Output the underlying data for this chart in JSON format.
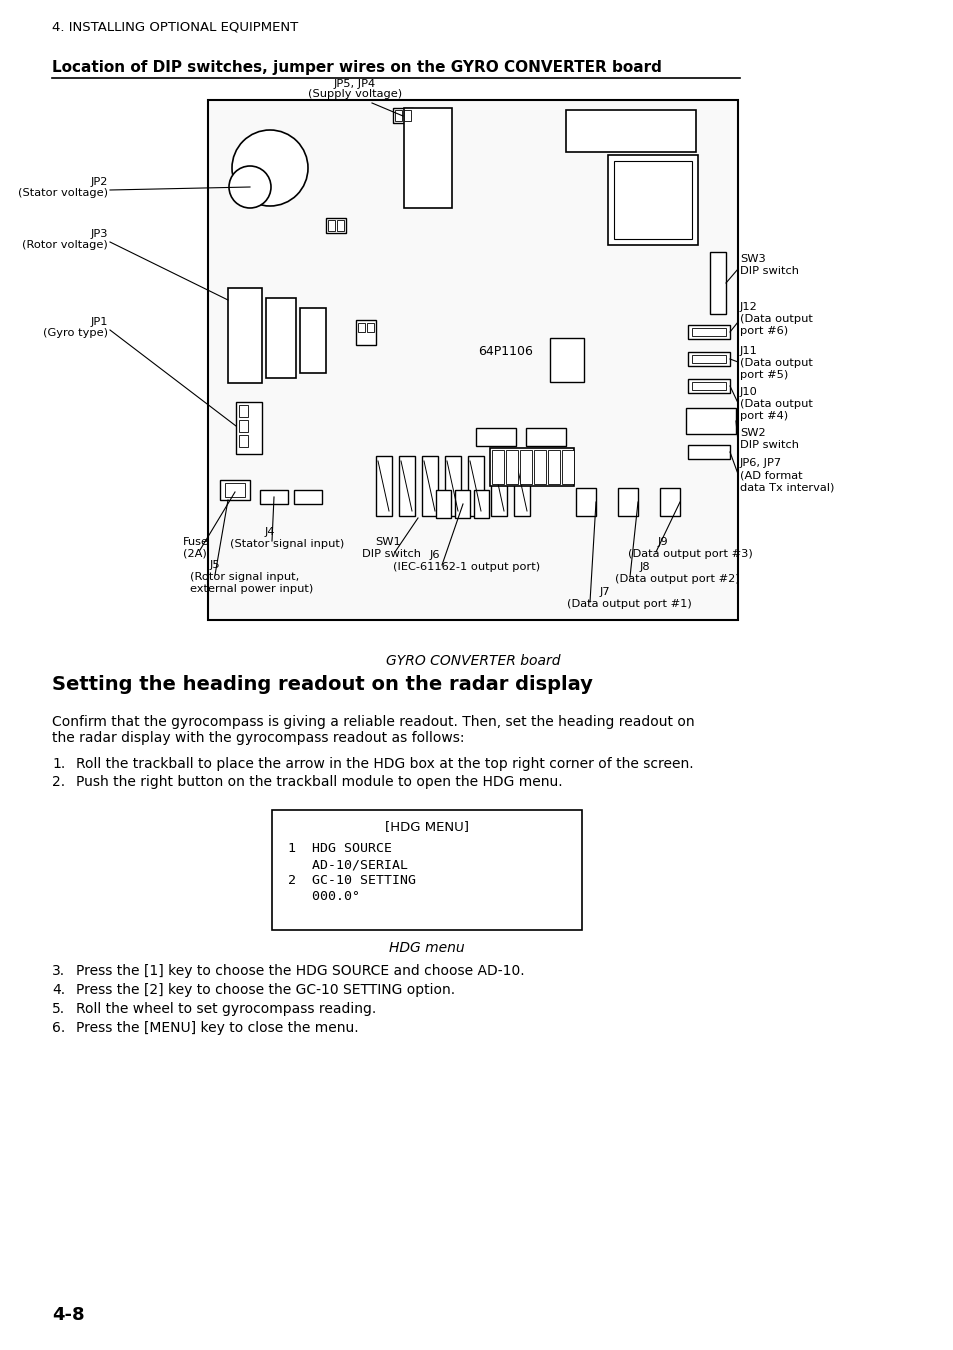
{
  "page_header": "4. INSTALLING OPTIONAL EQUIPMENT",
  "section_title": "Location of DIP switches, jumper wires on the GYRO CONVERTER board",
  "board_caption": "GYRO CONVERTER board",
  "section2_title": "Setting the heading readout on the radar display",
  "intro_text_1": "Confirm that the gyrocompass is giving a reliable readout. Then, set the heading readout on",
  "intro_text_2": "the radar display with the gyrocompass readout as follows:",
  "step1": "Roll the trackball to place the arrow in the HDG box at the top right corner of the screen.",
  "step2": "Push the right button on the trackball module to open the HDG menu.",
  "menu_title": "[HDG MENU]",
  "menu_line1": "1  HDG SOURCE",
  "menu_line2": "   AD-10/SERIAL",
  "menu_line3": "2  GC-10 SETTING",
  "menu_line4": "   000.0°",
  "menu_caption": "HDG menu",
  "step3": "Press the [1] key to choose the HDG SOURCE and choose AD-10.",
  "step4": "Press the [2] key to choose the GC-10 SETTING option.",
  "step5": "Roll the wheel to set gyrocompass reading.",
  "step6": "Press the [MENU] key to close the menu.",
  "page_number": "4-8",
  "bg_color": "#ffffff",
  "text_color": "#000000"
}
